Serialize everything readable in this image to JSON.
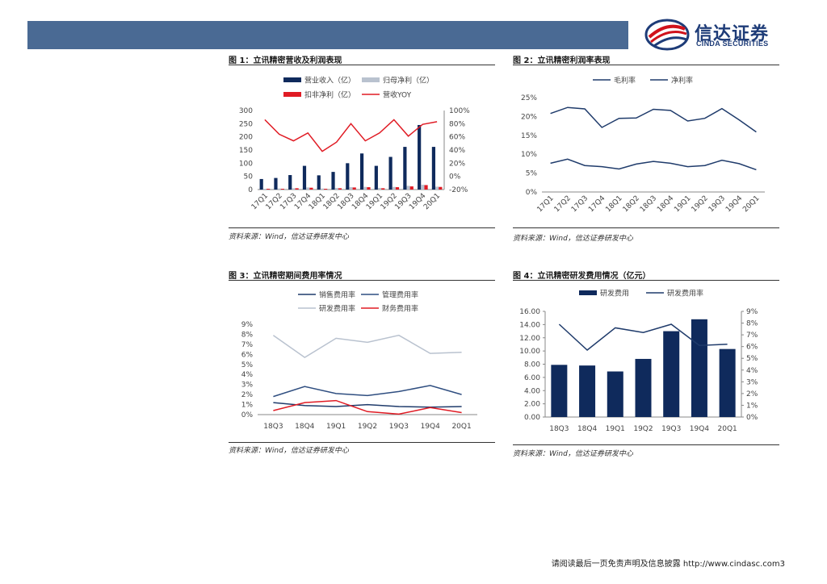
{
  "header": {
    "logo_cn": "信达证券",
    "logo_en": "CINDA SECURITIES"
  },
  "figures": [
    {
      "title": "图 1：立讯精密营收及利润表现",
      "source": "资料来源：Wind，信达证券研发中心"
    },
    {
      "title": "图 2：立讯精密利润率表现",
      "source": "资料来源：Wind，信达证券研发中心"
    },
    {
      "title": "图 3：立讯精密期间费用率情况",
      "source": "资料来源：Wind，信达证券研发中心"
    },
    {
      "title": "图 4：立讯精密研发费用情况（亿元）",
      "source": "资料来源：Wind，信达证券研发中心"
    }
  ],
  "footer": {
    "text": "请阅读最后一页免责声明及信息披露 http://www.cindasc.com3"
  },
  "colors": {
    "navy": "#0f2a5c",
    "gray": "#b9c2cf",
    "red": "#e01b24",
    "header": "#4a6a94"
  },
  "chart_data": [
    {
      "type": "bar+line",
      "categories": [
        "17Q1",
        "17Q2",
        "17Q3",
        "17Q4",
        "18Q1",
        "18Q2",
        "18Q3",
        "18Q4",
        "19Q1",
        "19Q2",
        "19Q3",
        "19Q4",
        "20Q1"
      ],
      "series": [
        {
          "name": "营业收入（亿）",
          "kind": "bar",
          "axis": "left",
          "color": "#0f2a5c",
          "values": [
            40,
            44,
            55,
            90,
            54,
            67,
            100,
            137,
            90,
            124,
            162,
            245,
            162
          ]
        },
        {
          "name": "归母净利（亿）",
          "kind": "bar",
          "axis": "left",
          "color": "#b9c2cf",
          "values": [
            3,
            4,
            5,
            8,
            4,
            6,
            9,
            10,
            6,
            10,
            14,
            18,
            11
          ]
        },
        {
          "name": "扣非净利（亿）",
          "kind": "bar",
          "axis": "left",
          "color": "#e01b24",
          "values": [
            3,
            3,
            5,
            7,
            3,
            5,
            8,
            9,
            5,
            9,
            12,
            17,
            10
          ]
        },
        {
          "name": "营收YOY",
          "kind": "line",
          "axis": "right",
          "color": "#e01b24",
          "values": [
            86,
            64,
            54,
            66,
            38,
            52,
            80,
            54,
            66,
            86,
            61,
            79,
            83
          ]
        }
      ],
      "ylim": [
        0,
        300
      ],
      "yticks": [
        "0",
        "50",
        "100",
        "150",
        "200",
        "250",
        "300"
      ],
      "y2lim": [
        -20,
        100
      ],
      "y2ticks": [
        "-20%",
        "0%",
        "20%",
        "40%",
        "60%",
        "80%",
        "100%"
      ],
      "legend": "top"
    },
    {
      "type": "line",
      "categories": [
        "17Q1",
        "17Q2",
        "17Q3",
        "17Q4",
        "18Q1",
        "18Q2",
        "18Q3",
        "18Q4",
        "19Q1",
        "19Q2",
        "19Q3",
        "19Q4",
        "20Q1"
      ],
      "series": [
        {
          "name": "毛利率",
          "color": "#1f3b6b",
          "values": [
            20.8,
            22.4,
            22.0,
            17.1,
            19.5,
            19.6,
            21.9,
            21.6,
            18.8,
            19.5,
            22.1,
            19.1,
            15.9
          ]
        },
        {
          "name": "净利率",
          "color": "#1f3b6b",
          "values": [
            7.6,
            8.7,
            7.0,
            6.7,
            6.1,
            7.4,
            8.1,
            7.6,
            6.7,
            7.0,
            8.4,
            7.5,
            5.9
          ]
        }
      ],
      "ylim": [
        0,
        25
      ],
      "yticks": [
        "0%",
        "5%",
        "10%",
        "15%",
        "20%",
        "25%"
      ],
      "legend": "top"
    },
    {
      "type": "line",
      "categories": [
        "18Q3",
        "18Q4",
        "19Q1",
        "19Q2",
        "19Q3",
        "19Q4",
        "20Q1"
      ],
      "series": [
        {
          "name": "销售费用率",
          "color": "#1f3b6b",
          "values": [
            1.2,
            0.9,
            0.8,
            1.0,
            0.8,
            0.75,
            0.8
          ]
        },
        {
          "name": "管理费用率",
          "color": "#2f4e80",
          "values": [
            1.8,
            2.8,
            2.1,
            1.9,
            2.3,
            2.9,
            2.0
          ]
        },
        {
          "name": "研发费用率",
          "color": "#b9c2cf",
          "values": [
            7.9,
            5.7,
            7.6,
            7.2,
            7.9,
            6.1,
            6.2
          ]
        },
        {
          "name": "财务费用率",
          "color": "#e01b24",
          "values": [
            0.4,
            1.2,
            1.4,
            0.3,
            0.05,
            0.7,
            0.2
          ]
        }
      ],
      "ylim": [
        0,
        9
      ],
      "yticks": [
        "0%",
        "1%",
        "2%",
        "3%",
        "4%",
        "5%",
        "6%",
        "7%",
        "8%",
        "9%"
      ],
      "legend": "top"
    },
    {
      "type": "bar+line",
      "categories": [
        "18Q3",
        "18Q4",
        "19Q1",
        "19Q2",
        "19Q3",
        "19Q4",
        "20Q1"
      ],
      "series": [
        {
          "name": "研发费用",
          "kind": "bar",
          "axis": "left",
          "color": "#0f2a5c",
          "values": [
            7.9,
            7.8,
            6.9,
            8.8,
            13.0,
            14.8,
            10.3
          ]
        },
        {
          "name": "研发费用率",
          "kind": "line",
          "axis": "right",
          "color": "#1f3b6b",
          "values": [
            7.9,
            5.7,
            7.6,
            7.2,
            7.9,
            6.1,
            6.2
          ]
        }
      ],
      "ylim": [
        0,
        16
      ],
      "yticks": [
        "0.00",
        "2.00",
        "4.00",
        "6.00",
        "8.00",
        "10.00",
        "12.00",
        "14.00",
        "16.00"
      ],
      "y2lim": [
        0,
        9
      ],
      "y2ticks": [
        "0%",
        "1%",
        "2%",
        "3%",
        "4%",
        "5%",
        "6%",
        "7%",
        "8%",
        "9%"
      ],
      "legend": "top"
    }
  ]
}
